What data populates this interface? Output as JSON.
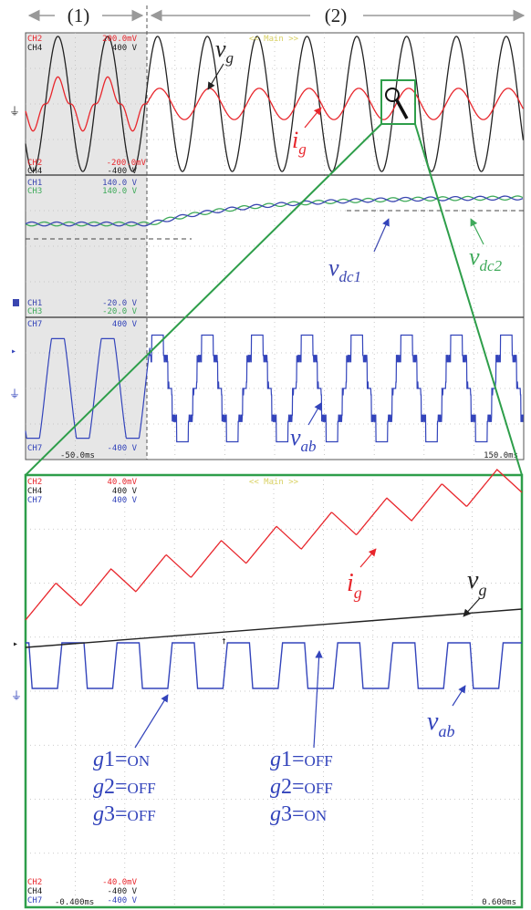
{
  "colors": {
    "ch2": "#e8262c",
    "ch4": "#222222",
    "ch1": "#3a46b0",
    "ch3": "#3faa5a",
    "ch7": "#3344bb",
    "frame": "#2e9e4a",
    "grid": "#bbbbbb",
    "main": "#d8d060",
    "shade": "#e6e6e6"
  },
  "header": {
    "phase1": "(1)",
    "phase2": "(2)"
  },
  "top": {
    "main_label": "<< Main >>",
    "p1": {
      "ch2_top": {
        "ch": "CH2",
        "val": "200.0mV"
      },
      "ch4_top": {
        "ch": "CH4",
        "val": "400 V"
      },
      "ch2_bot": {
        "ch": "CH2",
        "val": "-200.0mV"
      },
      "ch4_bot": {
        "ch": "CH4",
        "val": "-400 V"
      },
      "vg": {
        "main": "v",
        "sub": "g"
      },
      "ig": {
        "main": "i",
        "sub": "g"
      }
    },
    "p2": {
      "ch1_top": {
        "ch": "CH1",
        "val": "140.0 V"
      },
      "ch3_top": {
        "ch": "CH3",
        "val": "140.0 V"
      },
      "ch1_bot": {
        "ch": "CH1",
        "val": "-20.0 V"
      },
      "ch3_bot": {
        "ch": "CH3",
        "val": "-20.0 V"
      },
      "vdc1": {
        "main": "v",
        "sub": "dc1"
      },
      "vdc2": {
        "main": "v",
        "sub": "dc2"
      }
    },
    "p3": {
      "ch7_top": {
        "ch": "CH7",
        "val": "400 V"
      },
      "ch7_bot": {
        "ch": "CH7",
        "val": "-400 V"
      },
      "vab": {
        "main": "v",
        "sub": "ab"
      }
    },
    "time_start": "-50.0ms",
    "time_end": "150.0ms"
  },
  "zoom": {
    "main_label": "<< Main >>",
    "ch2_top": {
      "ch": "CH2",
      "val": "40.0mV"
    },
    "ch4_top": {
      "ch": "CH4",
      "val": "400 V"
    },
    "ch7_top": {
      "ch": "CH7",
      "val": "400 V"
    },
    "ch2_bot": {
      "ch": "CH2",
      "val": "-40.0mV"
    },
    "ch4_bot": {
      "ch": "CH4",
      "val": "-400 V"
    },
    "ch7_bot": {
      "ch": "CH7",
      "val": "-400 V"
    },
    "time_start": "-0.400ms",
    "time_end": "0.600ms",
    "ig": {
      "main": "i",
      "sub": "g"
    },
    "vg": {
      "main": "v",
      "sub": "g"
    },
    "vab": {
      "main": "v",
      "sub": "ab"
    },
    "state_left": [
      {
        "g": "g",
        "n": "1",
        "eq": "=",
        "s": "ON"
      },
      {
        "g": "g",
        "n": "2",
        "eq": "=",
        "s": "OFF"
      },
      {
        "g": "g",
        "n": "3",
        "eq": "=",
        "s": "OFF"
      }
    ],
    "state_right": [
      {
        "g": "g",
        "n": "1",
        "eq": "=",
        "s": "OFF"
      },
      {
        "g": "g",
        "n": "2",
        "eq": "=",
        "s": "OFF"
      },
      {
        "g": "g",
        "n": "3",
        "eq": "=",
        "s": "ON"
      }
    ]
  },
  "chart_data": [
    {
      "type": "line",
      "panel": "top",
      "x_unit": "ms",
      "xlim": [
        -50,
        150
      ],
      "x_phase_boundary": 0,
      "series": [
        {
          "name": "v_g",
          "channel": "CH4",
          "scale_range": [
            -400,
            400
          ],
          "unit": "V",
          "frequency_hz": 50,
          "amplitude_fraction_of_range": 0.95
        },
        {
          "name": "i_g",
          "channel": "CH2",
          "scale_range": [
            -200,
            200
          ],
          "unit": "mV",
          "frequency_hz": 50,
          "amplitude_fraction_of_range_phase1": 0.38,
          "amplitude_fraction_of_range_phase2": 0.22
        },
        {
          "name": "v_dc1",
          "channel": "CH1",
          "scale_range": [
            -20,
            140
          ],
          "unit": "V",
          "phase1_value": 85,
          "phase2_final_value": 115
        },
        {
          "name": "v_dc2",
          "channel": "CH3",
          "scale_range": [
            -20,
            140
          ],
          "unit": "V",
          "phase1_value": 85,
          "phase2_final_value": 115
        },
        {
          "name": "v_ab",
          "channel": "CH7",
          "scale_range": [
            -400,
            400
          ],
          "unit": "V",
          "frequency_hz": 50,
          "levels_phase2": 5
        }
      ]
    },
    {
      "type": "line",
      "panel": "zoom",
      "x_unit": "ms",
      "xlim": [
        -0.4,
        0.6
      ],
      "series": [
        {
          "name": "i_g",
          "channel": "CH2",
          "scale_range": [
            -40,
            40
          ],
          "unit": "mV",
          "switching_cycles": 9
        },
        {
          "name": "v_g",
          "channel": "CH4",
          "scale_range": [
            -400,
            400
          ],
          "unit": "V"
        },
        {
          "name": "v_ab",
          "channel": "CH7",
          "scale_range": [
            -400,
            400
          ],
          "unit": "V",
          "pulses": 9
        }
      ]
    }
  ]
}
